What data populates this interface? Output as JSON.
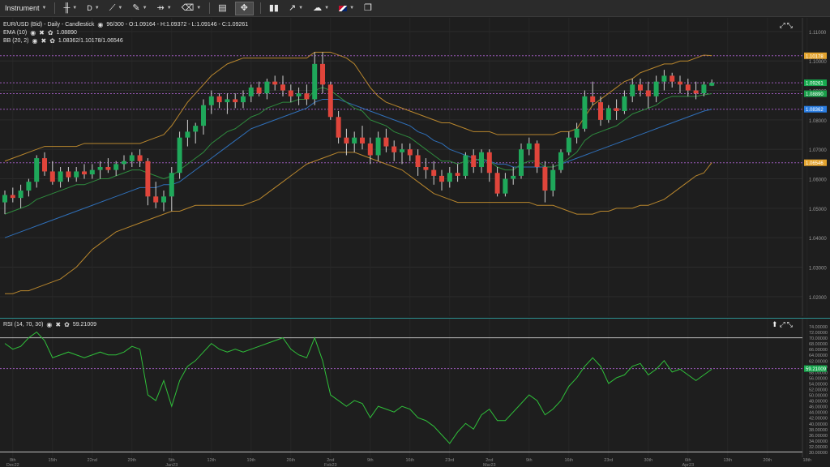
{
  "toolbar": {
    "instrument_label": "Instrument",
    "timeframe_label": "D",
    "icons": [
      "candles-icon",
      "crosshair-icon",
      "draw-icon",
      "shapes-icon",
      "trash-icon",
      "layout-icon",
      "expand-icon",
      "bar-chart-icon",
      "trend-icon",
      "alert-icon",
      "flag-icon",
      "window-icon"
    ]
  },
  "legend": {
    "title": "EUR/USD (Bid) - Daily - Candlestick",
    "ohlc": "96/300 - O:1.09164 - H:1.09372 - L:1.09146 - C:1.09261",
    "ema_label": "EMA (10)",
    "ema_value": "1.08890",
    "bb_label": "BB (20, 2)",
    "bb_value": "1.08362/1.10178/1.06546",
    "rsi_label": "RSI (14, 70, 30)",
    "rsi_value": "59.21009"
  },
  "price_axis": {
    "ticks": [
      "1.11000",
      "1.10000",
      "1.09000",
      "1.08000",
      "1.07000",
      "1.06000",
      "1.05000",
      "1.04000",
      "1.03000",
      "1.02000"
    ],
    "tags": [
      {
        "label": "1.10178",
        "price": 1.10178,
        "color": "#e3a32e"
      },
      {
        "label": "1.09261",
        "price": 1.09261,
        "color": "#17a84e"
      },
      {
        "label": "1.08890",
        "price": 1.0889,
        "color": "#1a9e4a"
      },
      {
        "label": "1.08362",
        "price": 1.08362,
        "color": "#2a7de1"
      },
      {
        "label": "1.06546",
        "price": 1.06546,
        "color": "#e3a32e"
      }
    ]
  },
  "rsi_axis": {
    "ticks": [
      "74.00000",
      "72.00000",
      "70.00000",
      "68.00000",
      "66.00000",
      "64.00000",
      "62.00000",
      "60.00000",
      "58.00000",
      "56.00000",
      "54.00000",
      "52.00000",
      "50.00000",
      "48.00000",
      "46.00000",
      "44.00000",
      "42.00000",
      "40.00000",
      "38.00000",
      "36.00000",
      "34.00000",
      "32.00000",
      "30.00000"
    ],
    "tag": {
      "label": "59.21009",
      "value": 59.21009,
      "color": "#17a84e"
    }
  },
  "x_axis": {
    "labels": [
      {
        "top": "8th",
        "bottom": "Dec22",
        "i": 1
      },
      {
        "top": "15th",
        "bottom": "",
        "i": 6
      },
      {
        "top": "22nd",
        "bottom": "",
        "i": 11
      },
      {
        "top": "29th",
        "bottom": "",
        "i": 16
      },
      {
        "top": "5th",
        "bottom": "Jan23",
        "i": 21
      },
      {
        "top": "12th",
        "bottom": "",
        "i": 26
      },
      {
        "top": "19th",
        "bottom": "",
        "i": 31
      },
      {
        "top": "26th",
        "bottom": "",
        "i": 36
      },
      {
        "top": "2nd",
        "bottom": "Feb23",
        "i": 41
      },
      {
        "top": "9th",
        "bottom": "",
        "i": 46
      },
      {
        "top": "16th",
        "bottom": "",
        "i": 51
      },
      {
        "top": "23rd",
        "bottom": "",
        "i": 56
      },
      {
        "top": "2nd",
        "bottom": "Mar23",
        "i": 61
      },
      {
        "top": "9th",
        "bottom": "",
        "i": 66
      },
      {
        "top": "16th",
        "bottom": "",
        "i": 71
      },
      {
        "top": "23rd",
        "bottom": "",
        "i": 76
      },
      {
        "top": "30th",
        "bottom": "",
        "i": 81
      },
      {
        "top": "6th",
        "bottom": "Apr23",
        "i": 86
      },
      {
        "top": "13th",
        "bottom": "",
        "i": 91
      },
      {
        "top": "20th",
        "bottom": "",
        "i": 96
      },
      {
        "top": "18th",
        "bottom": "",
        "i": 101
      }
    ]
  },
  "chart_data": [
    {
      "type": "candlestick",
      "title": "EUR/USD (Bid) - Daily - Candlestick",
      "ylim": [
        1.015,
        1.113
      ],
      "candles": [
        [
          1.052,
          1.056,
          1.048,
          1.0545
        ],
        [
          1.0545,
          1.057,
          1.052,
          1.0535
        ],
        [
          1.0535,
          1.058,
          1.05,
          1.056
        ],
        [
          1.056,
          1.06,
          1.054,
          1.059
        ],
        [
          1.059,
          1.068,
          1.057,
          1.067
        ],
        [
          1.067,
          1.069,
          1.061,
          1.0625
        ],
        [
          1.0625,
          1.066,
          1.058,
          1.059
        ],
        [
          1.059,
          1.064,
          1.057,
          1.0625
        ],
        [
          1.0625,
          1.064,
          1.059,
          1.0605
        ],
        [
          1.0605,
          1.064,
          1.059,
          1.0625
        ],
        [
          1.0625,
          1.065,
          1.06,
          1.0615
        ],
        [
          1.0615,
          1.065,
          1.06,
          1.063
        ],
        [
          1.063,
          1.066,
          1.06,
          1.064
        ],
        [
          1.064,
          1.067,
          1.062,
          1.063
        ],
        [
          1.063,
          1.066,
          1.061,
          1.065
        ],
        [
          1.065,
          1.068,
          1.063,
          1.066
        ],
        [
          1.066,
          1.069,
          1.064,
          1.068
        ],
        [
          1.068,
          1.07,
          1.064,
          1.066
        ],
        [
          1.066,
          1.067,
          1.051,
          1.054
        ],
        [
          1.054,
          1.059,
          1.05,
          1.052
        ],
        [
          1.052,
          1.056,
          1.049,
          1.054
        ],
        [
          1.054,
          1.064,
          1.049,
          1.062
        ],
        [
          1.062,
          1.076,
          1.06,
          1.074
        ],
        [
          1.074,
          1.08,
          1.071,
          1.076
        ],
        [
          1.076,
          1.079,
          1.072,
          1.078
        ],
        [
          1.078,
          1.087,
          1.075,
          1.085
        ],
        [
          1.085,
          1.09,
          1.082,
          1.088
        ],
        [
          1.088,
          1.089,
          1.084,
          1.086
        ],
        [
          1.086,
          1.089,
          1.082,
          1.087
        ],
        [
          1.087,
          1.089,
          1.084,
          1.086
        ],
        [
          1.086,
          1.09,
          1.084,
          1.088
        ],
        [
          1.088,
          1.092,
          1.086,
          1.091
        ],
        [
          1.091,
          1.093,
          1.088,
          1.089
        ],
        [
          1.089,
          1.094,
          1.087,
          1.093
        ],
        [
          1.093,
          1.095,
          1.09,
          1.092
        ],
        [
          1.092,
          1.095,
          1.088,
          1.09
        ],
        [
          1.09,
          1.092,
          1.086,
          1.088
        ],
        [
          1.088,
          1.091,
          1.085,
          1.089
        ],
        [
          1.089,
          1.092,
          1.085,
          1.087
        ],
        [
          1.087,
          1.103,
          1.085,
          1.099
        ],
        [
          1.099,
          1.103,
          1.089,
          1.092
        ],
        [
          1.092,
          1.093,
          1.08,
          1.081
        ],
        [
          1.081,
          1.083,
          1.072,
          1.074
        ],
        [
          1.074,
          1.077,
          1.068,
          1.072
        ],
        [
          1.072,
          1.076,
          1.069,
          1.074
        ],
        [
          1.074,
          1.078,
          1.07,
          1.072
        ],
        [
          1.072,
          1.074,
          1.065,
          1.068
        ],
        [
          1.068,
          1.076,
          1.066,
          1.074
        ],
        [
          1.074,
          1.077,
          1.069,
          1.071
        ],
        [
          1.071,
          1.073,
          1.066,
          1.069
        ],
        [
          1.069,
          1.072,
          1.065,
          1.07
        ],
        [
          1.07,
          1.072,
          1.066,
          1.068
        ],
        [
          1.068,
          1.07,
          1.061,
          1.064
        ],
        [
          1.064,
          1.067,
          1.06,
          1.063
        ],
        [
          1.063,
          1.066,
          1.058,
          1.061
        ],
        [
          1.061,
          1.063,
          1.056,
          1.059
        ],
        [
          1.059,
          1.064,
          1.057,
          1.062
        ],
        [
          1.062,
          1.065,
          1.059,
          1.061
        ],
        [
          1.061,
          1.069,
          1.06,
          1.068
        ],
        [
          1.068,
          1.07,
          1.062,
          1.064
        ],
        [
          1.064,
          1.07,
          1.062,
          1.069
        ],
        [
          1.069,
          1.07,
          1.059,
          1.062
        ],
        [
          1.062,
          1.064,
          1.054,
          1.055
        ],
        [
          1.055,
          1.062,
          1.054,
          1.06
        ],
        [
          1.06,
          1.064,
          1.058,
          1.061
        ],
        [
          1.061,
          1.072,
          1.06,
          1.07
        ],
        [
          1.07,
          1.074,
          1.068,
          1.072
        ],
        [
          1.072,
          1.073,
          1.062,
          1.064
        ],
        [
          1.064,
          1.066,
          1.052,
          1.056
        ],
        [
          1.056,
          1.065,
          1.054,
          1.063
        ],
        [
          1.063,
          1.07,
          1.062,
          1.069
        ],
        [
          1.069,
          1.076,
          1.068,
          1.074
        ],
        [
          1.074,
          1.079,
          1.072,
          1.077
        ],
        [
          1.077,
          1.09,
          1.076,
          1.088
        ],
        [
          1.088,
          1.093,
          1.085,
          1.086
        ],
        [
          1.086,
          1.088,
          1.078,
          1.08
        ],
        [
          1.08,
          1.085,
          1.079,
          1.084
        ],
        [
          1.084,
          1.087,
          1.08,
          1.083
        ],
        [
          1.083,
          1.09,
          1.082,
          1.088
        ],
        [
          1.088,
          1.094,
          1.086,
          1.092
        ],
        [
          1.092,
          1.094,
          1.088,
          1.09
        ],
        [
          1.09,
          1.093,
          1.084,
          1.088
        ],
        [
          1.088,
          1.095,
          1.086,
          1.093
        ],
        [
          1.093,
          1.097,
          1.09,
          1.095
        ],
        [
          1.095,
          1.096,
          1.091,
          1.093
        ],
        [
          1.093,
          1.095,
          1.089,
          1.092
        ],
        [
          1.092,
          1.094,
          1.088,
          1.09
        ],
        [
          1.09,
          1.093,
          1.087,
          1.089
        ],
        [
          1.089,
          1.093,
          1.088,
          1.092
        ],
        [
          1.0916,
          1.0937,
          1.0915,
          1.0926
        ]
      ],
      "ema": [
        1.048,
        1.049,
        1.05,
        1.051,
        1.053,
        1.054,
        1.055,
        1.056,
        1.057,
        1.058,
        1.058,
        1.059,
        1.06,
        1.06,
        1.061,
        1.062,
        1.063,
        1.063,
        1.062,
        1.061,
        1.06,
        1.061,
        1.063,
        1.065,
        1.067,
        1.069,
        1.072,
        1.074,
        1.076,
        1.077,
        1.079,
        1.081,
        1.082,
        1.084,
        1.085,
        1.086,
        1.086,
        1.087,
        1.087,
        1.09,
        1.091,
        1.09,
        1.088,
        1.086,
        1.084,
        1.083,
        1.08,
        1.079,
        1.078,
        1.076,
        1.075,
        1.074,
        1.072,
        1.07,
        1.068,
        1.066,
        1.066,
        1.065,
        1.066,
        1.066,
        1.067,
        1.066,
        1.064,
        1.063,
        1.063,
        1.065,
        1.066,
        1.066,
        1.064,
        1.064,
        1.065,
        1.067,
        1.069,
        1.073,
        1.075,
        1.076,
        1.077,
        1.078,
        1.08,
        1.082,
        1.083,
        1.084,
        1.085,
        1.087,
        1.088,
        1.088,
        1.088,
        1.088,
        1.0885,
        1.0889
      ],
      "bb_mid": [
        1.04,
        1.041,
        1.042,
        1.043,
        1.044,
        1.045,
        1.046,
        1.047,
        1.048,
        1.049,
        1.05,
        1.051,
        1.052,
        1.053,
        1.054,
        1.055,
        1.056,
        1.057,
        1.057,
        1.057,
        1.058,
        1.058,
        1.059,
        1.061,
        1.063,
        1.065,
        1.067,
        1.069,
        1.071,
        1.073,
        1.075,
        1.077,
        1.078,
        1.079,
        1.08,
        1.081,
        1.082,
        1.083,
        1.084,
        1.086,
        1.087,
        1.087,
        1.087,
        1.086,
        1.085,
        1.084,
        1.083,
        1.082,
        1.081,
        1.08,
        1.079,
        1.078,
        1.076,
        1.075,
        1.073,
        1.072,
        1.07,
        1.069,
        1.068,
        1.067,
        1.066,
        1.066,
        1.065,
        1.065,
        1.064,
        1.064,
        1.064,
        1.064,
        1.064,
        1.064,
        1.065,
        1.066,
        1.067,
        1.068,
        1.069,
        1.07,
        1.071,
        1.072,
        1.073,
        1.074,
        1.075,
        1.076,
        1.077,
        1.078,
        1.079,
        1.08,
        1.081,
        1.082,
        1.083,
        1.0836
      ],
      "bb_upper": [
        1.066,
        1.067,
        1.068,
        1.069,
        1.07,
        1.071,
        1.071,
        1.071,
        1.071,
        1.071,
        1.072,
        1.072,
        1.072,
        1.072,
        1.072,
        1.072,
        1.072,
        1.072,
        1.073,
        1.074,
        1.075,
        1.078,
        1.082,
        1.086,
        1.089,
        1.092,
        1.095,
        1.097,
        1.099,
        1.1,
        1.101,
        1.101,
        1.101,
        1.101,
        1.101,
        1.101,
        1.101,
        1.101,
        1.101,
        1.103,
        1.103,
        1.103,
        1.102,
        1.101,
        1.099,
        1.095,
        1.091,
        1.088,
        1.086,
        1.085,
        1.084,
        1.083,
        1.082,
        1.081,
        1.08,
        1.079,
        1.079,
        1.078,
        1.077,
        1.076,
        1.076,
        1.076,
        1.075,
        1.075,
        1.075,
        1.075,
        1.075,
        1.075,
        1.075,
        1.075,
        1.076,
        1.076,
        1.077,
        1.081,
        1.085,
        1.087,
        1.089,
        1.091,
        1.093,
        1.094,
        1.096,
        1.097,
        1.098,
        1.099,
        1.099,
        1.1,
        1.1,
        1.101,
        1.102,
        1.1018
      ],
      "bb_lower": [
        1.021,
        1.021,
        1.022,
        1.022,
        1.023,
        1.024,
        1.025,
        1.026,
        1.028,
        1.03,
        1.033,
        1.036,
        1.038,
        1.04,
        1.042,
        1.043,
        1.044,
        1.045,
        1.046,
        1.047,
        1.048,
        1.049,
        1.049,
        1.05,
        1.051,
        1.051,
        1.051,
        1.051,
        1.051,
        1.051,
        1.051,
        1.052,
        1.053,
        1.055,
        1.057,
        1.059,
        1.061,
        1.063,
        1.065,
        1.066,
        1.067,
        1.068,
        1.069,
        1.069,
        1.069,
        1.068,
        1.067,
        1.066,
        1.065,
        1.064,
        1.063,
        1.061,
        1.059,
        1.057,
        1.055,
        1.054,
        1.053,
        1.052,
        1.052,
        1.052,
        1.052,
        1.052,
        1.052,
        1.052,
        1.052,
        1.052,
        1.052,
        1.051,
        1.051,
        1.051,
        1.05,
        1.049,
        1.048,
        1.048,
        1.048,
        1.049,
        1.049,
        1.05,
        1.05,
        1.05,
        1.051,
        1.051,
        1.052,
        1.053,
        1.055,
        1.057,
        1.059,
        1.061,
        1.062,
        1.0655
      ]
    },
    {
      "type": "line",
      "title": "RSI (14, 70, 30)",
      "ylim": [
        29,
        75
      ],
      "overbought": 70,
      "oversold": 30,
      "values": [
        68,
        66,
        67,
        70,
        72,
        69,
        63,
        64,
        65,
        64,
        63,
        64,
        65,
        64,
        64,
        65,
        67,
        66,
        50,
        48,
        55,
        46,
        55,
        60,
        62,
        65,
        68,
        66,
        65,
        66,
        65,
        66,
        67,
        68,
        69,
        70,
        66,
        64,
        63,
        70,
        62,
        50,
        48,
        46,
        48,
        47,
        42,
        46,
        45,
        44,
        46,
        45,
        42,
        41,
        39,
        36,
        33,
        37,
        40,
        38,
        43,
        45,
        41,
        41,
        44,
        47,
        50,
        48,
        43,
        45,
        48,
        53,
        56,
        60,
        63,
        60,
        54,
        56,
        57,
        60,
        61,
        57,
        59,
        62,
        58,
        59,
        57,
        55,
        57,
        59
      ]
    }
  ]
}
